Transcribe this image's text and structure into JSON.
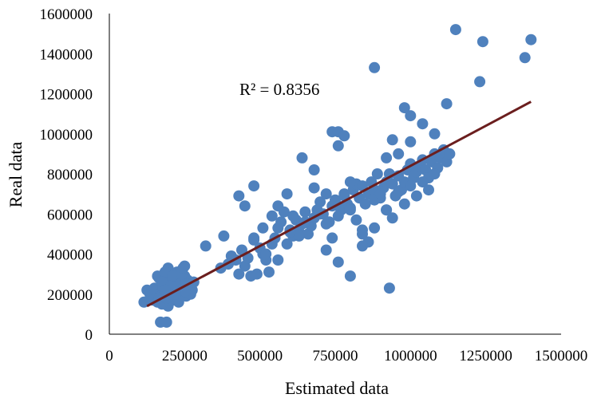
{
  "chart_data": {
    "type": "scatter",
    "title": "",
    "xlabel": "Estimated data",
    "ylabel": "Real data",
    "xlim": [
      0,
      1500000
    ],
    "ylim": [
      0,
      1600000
    ],
    "x_ticks": [
      0,
      250000,
      500000,
      750000,
      1000000,
      1250000,
      1500000
    ],
    "y_ticks": [
      0,
      200000,
      400000,
      600000,
      800000,
      1000000,
      1200000,
      1400000,
      1600000
    ],
    "x_tick_labels": [
      "0",
      "250000",
      "500000",
      "750000",
      "1000000",
      "1250000",
      "1500000"
    ],
    "y_tick_labels": [
      "0",
      "200000",
      "400000",
      "600000",
      "800000",
      "1000000",
      "1200000",
      "1400000",
      "1600000"
    ],
    "grid": false,
    "legend": "none",
    "annotation": "R² = 0.8356",
    "colors": {
      "points": "#4f81bd",
      "trendline": "#6b1e1e",
      "axis": "#000000"
    },
    "trendline": {
      "type": "linear",
      "x": [
        125000,
        1400000
      ],
      "y": [
        140000,
        1160000
      ]
    },
    "series": [
      {
        "x": [
          115000,
          125000,
          135000,
          145000,
          150000,
          160000,
          165000,
          170000,
          175000,
          180000,
          185000,
          190000,
          195000,
          200000,
          205000,
          210000,
          215000,
          220000,
          225000,
          230000,
          235000,
          240000,
          245000,
          250000,
          255000,
          260000,
          265000,
          270000,
          275000,
          280000,
          170000,
          195000,
          210000,
          230000,
          250000,
          180000,
          200000,
          215000,
          240000,
          260000,
          175000,
          190000,
          205000,
          225000,
          245000,
          265000,
          160000,
          185000,
          200000,
          235000,
          255000,
          270000,
          180000,
          220000,
          250000,
          165000,
          195000,
          230000,
          210000,
          175000,
          205000,
          240000,
          190000,
          220000,
          260000,
          185000,
          245000,
          280000,
          320000,
          370000,
          380000,
          395000,
          405000,
          420000,
          430000,
          440000,
          450000,
          460000,
          470000,
          480000,
          490000,
          500000,
          510000,
          520000,
          530000,
          540000,
          550000,
          560000,
          570000,
          580000,
          590000,
          600000,
          610000,
          620000,
          630000,
          640000,
          650000,
          660000,
          670000,
          680000,
          690000,
          700000,
          710000,
          720000,
          730000,
          740000,
          750000,
          760000,
          770000,
          780000,
          790000,
          800000,
          810000,
          820000,
          830000,
          840000,
          850000,
          860000,
          870000,
          880000,
          890000,
          900000,
          910000,
          920000,
          930000,
          940000,
          950000,
          960000,
          970000,
          980000,
          990000,
          1000000,
          1010000,
          1020000,
          1030000,
          1040000,
          1050000,
          1060000,
          1070000,
          1080000,
          1090000,
          1100000,
          1110000,
          1120000,
          1130000,
          430000,
          450000,
          480000,
          510000,
          540000,
          560000,
          590000,
          610000,
          630000,
          650000,
          680000,
          700000,
          720000,
          740000,
          760000,
          780000,
          800000,
          820000,
          840000,
          860000,
          880000,
          900000,
          920000,
          940000,
          960000,
          980000,
          1000000,
          1020000,
          1040000,
          1060000,
          1080000,
          480000,
          520000,
          560000,
          600000,
          640000,
          680000,
          720000,
          760000,
          800000,
          840000,
          880000,
          920000,
          960000,
          1000000,
          1040000,
          1080000,
          1120000,
          880000,
          1150000,
          1240000,
          1230000,
          1380000,
          1400000,
          740000,
          760000,
          780000,
          920000,
          940000,
          980000,
          1000000,
          760000,
          800000,
          840000,
          930000,
          170000,
          190000
        ],
        "y": [
          160000,
          220000,
          200000,
          170000,
          230000,
          160000,
          280000,
          200000,
          250000,
          180000,
          270000,
          220000,
          140000,
          300000,
          230000,
          170000,
          260000,
          240000,
          310000,
          190000,
          280000,
          250000,
          210000,
          290000,
          230000,
          270000,
          210000,
          250000,
          220000,
          260000,
          190000,
          330000,
          300000,
          160000,
          340000,
          240000,
          200000,
          180000,
          310000,
          220000,
          150000,
          260000,
          280000,
          200000,
          230000,
          240000,
          290000,
          310000,
          250000,
          270000,
          190000,
          200000,
          230000,
          260000,
          210000,
          180000,
          220000,
          170000,
          290000,
          260000,
          240000,
          300000,
          180000,
          200000,
          250000,
          220000,
          330000,
          260000,
          440000,
          330000,
          490000,
          350000,
          390000,
          370000,
          300000,
          420000,
          340000,
          380000,
          290000,
          470000,
          300000,
          430000,
          400000,
          370000,
          310000,
          590000,
          480000,
          530000,
          560000,
          610000,
          450000,
          520000,
          490000,
          570000,
          510000,
          550000,
          610000,
          500000,
          540000,
          580000,
          620000,
          660000,
          600000,
          700000,
          560000,
          640000,
          670000,
          590000,
          620000,
          690000,
          650000,
          630000,
          720000,
          750000,
          680000,
          740000,
          650000,
          700000,
          760000,
          720000,
          800000,
          680000,
          730000,
          760000,
          800000,
          750000,
          690000,
          790000,
          720000,
          760000,
          820000,
          850000,
          780000,
          810000,
          840000,
          870000,
          820000,
          780000,
          860000,
          900000,
          830000,
          880000,
          920000,
          860000,
          900000,
          690000,
          640000,
          740000,
          530000,
          450000,
          640000,
          700000,
          590000,
          490000,
          560000,
          730000,
          600000,
          550000,
          480000,
          640000,
          700000,
          620000,
          570000,
          520000,
          460000,
          670000,
          700000,
          620000,
          580000,
          710000,
          650000,
          740000,
          690000,
          760000,
          720000,
          800000,
          480000,
          400000,
          370000,
          510000,
          880000,
          820000,
          420000,
          360000,
          290000,
          440000,
          530000,
          620000,
          900000,
          960000,
          1050000,
          1000000,
          1150000,
          1330000,
          1520000,
          1460000,
          1260000,
          1380000,
          1470000,
          1010000,
          1010000,
          990000,
          880000,
          970000,
          1130000,
          1090000,
          940000,
          760000,
          500000,
          230000,
          60000,
          60000
        ]
      }
    ]
  }
}
